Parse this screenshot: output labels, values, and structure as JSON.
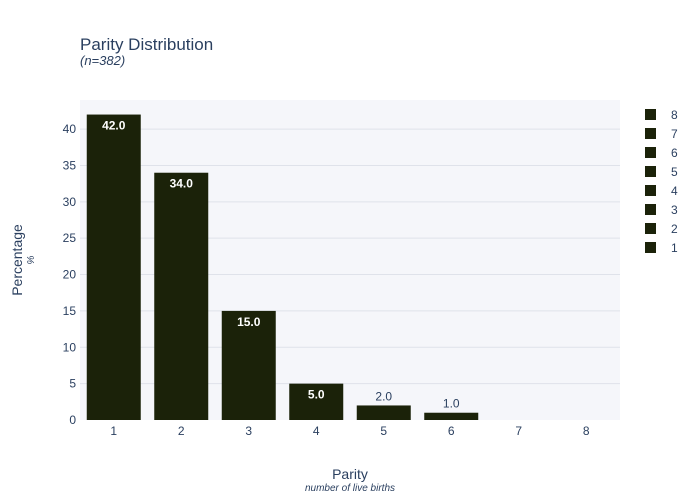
{
  "chart_data": {
    "type": "bar",
    "title": "Parity Distribution",
    "subtitle": "(n=382)",
    "xlabel": "Parity",
    "xlabel_sub": "number of live births",
    "ylabel": "Percentage",
    "ylabel_sub": "%",
    "categories": [
      "1",
      "2",
      "3",
      "4",
      "5",
      "6",
      "7",
      "8"
    ],
    "values": [
      42.0,
      34.0,
      15.0,
      5.0,
      2.0,
      1.0,
      0,
      0
    ],
    "data_labels": [
      "42.0",
      "34.0",
      "15.0",
      "5.0",
      "2.0",
      "1.0",
      "",
      ""
    ],
    "ylim": [
      0,
      44
    ],
    "yticks": [
      0,
      5,
      10,
      15,
      20,
      25,
      30,
      35,
      40
    ],
    "grid": true,
    "legend": {
      "position": "right",
      "entries": [
        "8",
        "7",
        "6",
        "5",
        "4",
        "3",
        "2",
        "1"
      ]
    },
    "colors": {
      "bar": "#1b2209",
      "plot_bg": "#f5f6fa",
      "grid": "#dfe2ea"
    }
  }
}
